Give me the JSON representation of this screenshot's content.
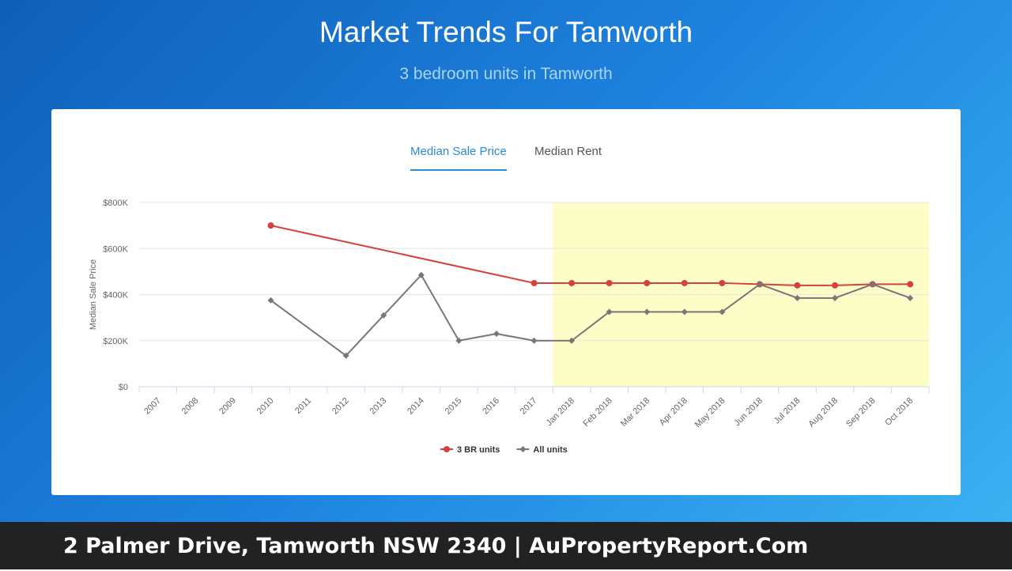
{
  "header": {
    "title": "Market Trends For Tamworth",
    "subtitle": "3 bedroom units in Tamworth"
  },
  "tabs": [
    "Median Sale Price",
    "Median Rent"
  ],
  "chart_data": {
    "type": "line",
    "y_label": "Median Sale Price",
    "categories": [
      "2007",
      "2008",
      "2009",
      "2010",
      "2011",
      "2012",
      "2013",
      "2014",
      "2015",
      "2016",
      "2017",
      "Jan 2018",
      "Feb 2018",
      "Mar 2018",
      "Apr 2018",
      "May 2018",
      "Jun 2018",
      "Jul 2018",
      "Aug 2018",
      "Sep 2018",
      "Oct 2018"
    ],
    "series": [
      {
        "name": "3 BR units",
        "color": "#d64040",
        "marker": "circle",
        "values": [
          null,
          null,
          null,
          700000,
          null,
          null,
          null,
          null,
          null,
          null,
          450000,
          450000,
          450000,
          450000,
          450000,
          450000,
          445000,
          440000,
          440000,
          445000,
          445000
        ]
      },
      {
        "name": "All units",
        "color": "#777777",
        "marker": "diamond",
        "values": [
          null,
          null,
          null,
          375000,
          null,
          135000,
          310000,
          485000,
          200000,
          230000,
          200000,
          200000,
          325000,
          325000,
          325000,
          325000,
          445000,
          385000,
          385000,
          445000,
          385000
        ]
      }
    ],
    "ylim": [
      0,
      800000
    ],
    "yticks": [
      {
        "value": 0,
        "label": "$0"
      },
      {
        "value": 200000,
        "label": "$200K"
      },
      {
        "value": 400000,
        "label": "$400K"
      },
      {
        "value": 600000,
        "label": "$600K"
      },
      {
        "value": 800000,
        "label": "$800K"
      }
    ],
    "grid": true,
    "span_gaps": true,
    "legend": "bottom"
  },
  "footer": "2 Palmer Drive, Tamworth NSW 2340 | AuPropertyReport.Com"
}
